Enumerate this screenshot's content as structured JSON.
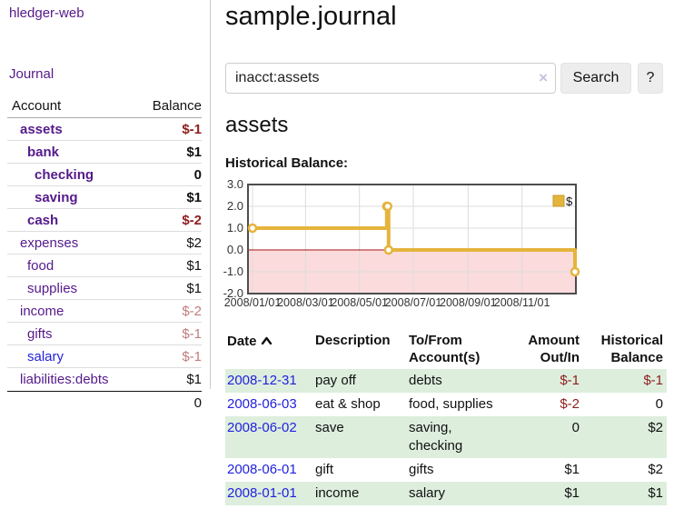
{
  "sidebar": {
    "app_title": "hledger-web",
    "journal_link": "Journal",
    "accounts": {
      "headers": {
        "account": "Account",
        "balance": "Balance"
      },
      "rows": [
        {
          "account": "assets",
          "indent": 0,
          "bold": true,
          "color": "purple",
          "balance": "$-1",
          "balance_style": "neg-strong"
        },
        {
          "account": "bank",
          "indent": 1,
          "bold": true,
          "color": "purple",
          "balance": "$1",
          "balance_style": "pos-strong"
        },
        {
          "account": "checking",
          "indent": 2,
          "bold": true,
          "color": "purple",
          "balance": "0",
          "balance_style": "pos-strong"
        },
        {
          "account": "saving",
          "indent": 2,
          "bold": true,
          "color": "purple",
          "balance": "$1",
          "balance_style": "pos-strong"
        },
        {
          "account": "cash",
          "indent": 1,
          "bold": true,
          "color": "purple",
          "balance": "$-2",
          "balance_style": "neg-strong"
        },
        {
          "account": "expenses",
          "indent": 0,
          "bold": false,
          "color": "purple",
          "balance": "$2",
          "balance_style": "pos"
        },
        {
          "account": "food",
          "indent": 1,
          "bold": false,
          "color": "purple",
          "balance": "$1",
          "balance_style": "pos"
        },
        {
          "account": "supplies",
          "indent": 1,
          "bold": false,
          "color": "purple",
          "balance": "$1",
          "balance_style": "pos"
        },
        {
          "account": "income",
          "indent": 0,
          "bold": false,
          "color": "purple",
          "balance": "$-2",
          "balance_style": "neg-soft"
        },
        {
          "account": "gifts",
          "indent": 1,
          "bold": false,
          "color": "purple",
          "balance": "$-1",
          "balance_style": "neg-soft"
        },
        {
          "account": "salary",
          "indent": 1,
          "bold": false,
          "color": "blue",
          "balance": "$-1",
          "balance_style": "neg-soft"
        },
        {
          "account": "liabilities:debts",
          "indent": 0,
          "bold": false,
          "color": "purple",
          "balance": "$1",
          "balance_style": "pos"
        }
      ],
      "total": "0"
    }
  },
  "header": {
    "title": "sample.journal"
  },
  "search": {
    "value": "inacct:assets",
    "clear_icon": "×",
    "search_button": "Search",
    "help_button": "?"
  },
  "account_page": {
    "title": "assets",
    "chart_label": "Historical Balance:"
  },
  "chart_data": {
    "type": "line",
    "title": "Historical Balance",
    "series": [
      {
        "name": "$",
        "step": true,
        "points": [
          [
            "2008-01-01",
            1
          ],
          [
            "2008-06-01",
            2
          ],
          [
            "2008-06-02",
            2
          ],
          [
            "2008-06-03",
            0
          ],
          [
            "2008-12-31",
            -1
          ]
        ]
      }
    ],
    "ylim": [
      -2,
      3
    ],
    "yticks": [
      "3.0",
      "2.0",
      "1.0",
      "0.0",
      "-1.0",
      "-2.0"
    ],
    "ytick_values": [
      3,
      2,
      1,
      0,
      -1,
      -2
    ],
    "xticks": [
      "2008/01/01",
      "2008/03/01",
      "2008/05/01",
      "2008/07/01",
      "2008/09/01",
      "2008/11/01"
    ],
    "xtick_dates": [
      "2008-01-01",
      "2008-03-01",
      "2008-05-01",
      "2008-07-01",
      "2008-09-01",
      "2008-11-01"
    ],
    "xrange": [
      "2008-01-01",
      "2008-12-31"
    ],
    "grid": true,
    "legend_position": "top-right",
    "colors": {
      "line": "#e5b43c",
      "marker_fill": "#ffffff",
      "negative_fill": "#fbdbdb",
      "zero_line": "#a40000",
      "grid": "#dcdcdc",
      "plot_border": "#4d4d4d",
      "legend_box_border": "#c69a28"
    }
  },
  "register_table": {
    "headers": {
      "date": "Date",
      "description": "Description",
      "account": "To/From Account(s)",
      "amount": "Amount Out/In",
      "balance": "Historical Balance"
    },
    "rows": [
      {
        "date": "2008-12-31",
        "description": "pay off",
        "account": "debts",
        "amount": "$-1",
        "amount_neg": true,
        "balance": "$-1",
        "balance_neg": true,
        "green": true
      },
      {
        "date": "2008-06-03",
        "description": "eat & shop",
        "account": "food, supplies",
        "amount": "$-2",
        "amount_neg": true,
        "balance": "0",
        "balance_neg": false,
        "green": false
      },
      {
        "date": "2008-06-02",
        "description": "save",
        "account": "saving, checking",
        "amount": "0",
        "amount_neg": false,
        "balance": "$2",
        "balance_neg": false,
        "green": true
      },
      {
        "date": "2008-06-01",
        "description": "gift",
        "account": "gifts",
        "amount": "$1",
        "amount_neg": false,
        "balance": "$2",
        "balance_neg": false,
        "green": false
      },
      {
        "date": "2008-01-01",
        "description": "income",
        "account": "salary",
        "amount": "$1",
        "amount_neg": false,
        "balance": "$1",
        "balance_neg": false,
        "green": true
      }
    ]
  },
  "colors": {
    "link_purple": "#551a8b",
    "link_blue": "#2222e0",
    "negative_red": "#8f1d1d",
    "negative_rose": "#c07c7c",
    "row_green": "#ddeedd",
    "accent_gold": "#e5b43c"
  }
}
